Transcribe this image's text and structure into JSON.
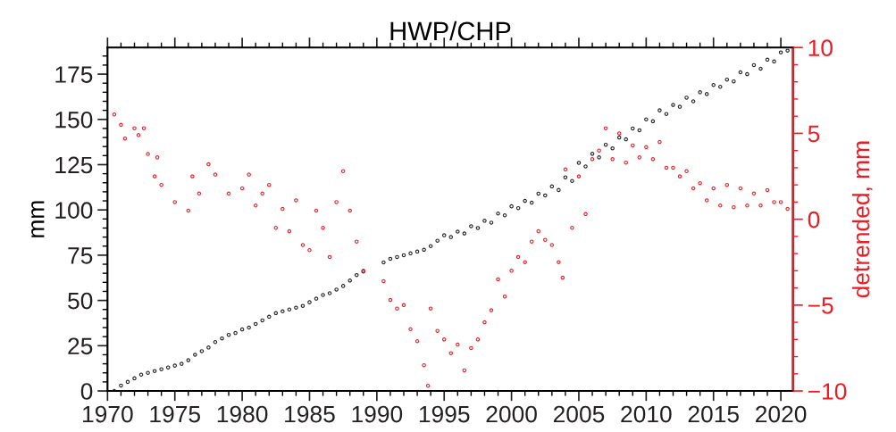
{
  "chart_data": {
    "type": "scatter",
    "title": "HWP/CHP",
    "ylabel": "mm",
    "y2label": "detrended, mm",
    "xlim": [
      1970,
      2020.9
    ],
    "xticks": [
      1970,
      1975,
      1980,
      1985,
      1990,
      1995,
      2000,
      2005,
      2010,
      2015,
      2020
    ],
    "ylim": [
      0,
      189.7
    ],
    "yticks": [
      0,
      25,
      50,
      75,
      100,
      125,
      150,
      175
    ],
    "y2lim": [
      -10,
      10
    ],
    "y2ticks": [
      {
        "value": -10,
        "label": "−10"
      },
      {
        "value": -5,
        "label": "−5"
      },
      0,
      5,
      10
    ],
    "marker": "circle",
    "grid": false,
    "series": [
      {
        "color": "#231f20",
        "x": [
          1970.5,
          1971,
          1971.5,
          1972,
          1972.5,
          1973,
          1973.5,
          1974,
          1974.5,
          1975,
          1975.5,
          1976,
          1976.5,
          1977,
          1977.5,
          1978,
          1978.5,
          1979,
          1979.5,
          1980,
          1980.5,
          1981,
          1981.5,
          1982,
          1982.5,
          1983,
          1983.5,
          1984,
          1984.5,
          1985,
          1985.5,
          1986,
          1986.5,
          1987,
          1987.5,
          1988,
          1988.5,
          1989,
          1990.5,
          1991,
          1991.5,
          1992,
          1992.5,
          1993,
          1993.5,
          1994,
          1994.5,
          1995,
          1995.5,
          1996,
          1996.5,
          1997,
          1997.5,
          1998,
          1998.5,
          1999,
          1999.5,
          2000,
          2000.5,
          2001,
          2001.5,
          2002,
          2002.5,
          2003,
          2003.5,
          2004,
          2004.5,
          2005,
          2005.5,
          2006,
          2006.5,
          2007,
          2007.5,
          2008,
          2008.5,
          2009,
          2009.5,
          2010,
          2010.5,
          2011,
          2011.5,
          2012,
          2012.5,
          2013,
          2013.5,
          2014,
          2014.5,
          2015,
          2015.5,
          2016,
          2016.5,
          2017,
          2017.5,
          2018,
          2018.5,
          2019,
          2019.5,
          2020,
          2020.5
        ],
        "values": [
          0,
          3,
          5,
          7,
          9,
          10,
          11,
          12,
          13,
          14,
          15,
          17,
          20,
          22,
          24,
          27,
          29,
          31,
          32,
          34,
          35,
          37,
          39,
          41,
          43,
          44,
          45,
          46,
          47,
          49,
          51,
          53,
          54,
          56,
          58,
          61,
          64,
          66,
          71,
          73,
          74,
          75,
          76,
          77,
          78,
          80,
          83,
          86,
          85,
          88,
          87,
          91,
          90,
          94,
          93,
          98,
          97,
          102,
          101,
          105,
          104,
          109,
          108,
          113,
          111,
          118,
          116,
          126,
          124,
          131,
          129,
          136,
          134,
          140,
          139,
          145,
          144,
          150,
          149,
          155,
          153,
          158,
          157,
          162,
          160,
          165,
          164,
          169,
          168,
          172,
          171,
          176,
          175,
          180,
          178,
          183,
          182,
          187,
          188
        ]
      },
      {
        "color": "#ed1c24",
        "axis": "y2",
        "x": [
          1970.5,
          1971,
          1971.3,
          1972,
          1972.3,
          1972.7,
          1973,
          1973.5,
          1973.7,
          1974,
          1975,
          1976,
          1976.3,
          1976.8,
          1977.5,
          1978,
          1979,
          1980,
          1980.5,
          1981,
          1981.5,
          1982,
          1982.5,
          1983,
          1983.5,
          1984,
          1984.5,
          1985,
          1985.5,
          1986,
          1986.5,
          1987,
          1987.5,
          1988,
          1988.5,
          1989,
          1990.5,
          1991,
          1991.5,
          1992,
          1992.5,
          1993,
          1993.5,
          1993.8,
          1994,
          1994.5,
          1995,
          1995.5,
          1996,
          1996.5,
          1997,
          1997.5,
          1998,
          1998.5,
          1999,
          1999.5,
          2000,
          2000.5,
          2001,
          2001.5,
          2002,
          2002.5,
          2003,
          2003.5,
          2003.8,
          2004,
          2004.5,
          2005,
          2005.5,
          2006,
          2006.5,
          2007,
          2007.5,
          2008,
          2008.5,
          2009,
          2009.5,
          2010,
          2010.5,
          2011,
          2011.5,
          2012,
          2012.5,
          2013,
          2013.5,
          2014,
          2014.5,
          2015,
          2015.5,
          2016,
          2016.5,
          2017,
          2017.5,
          2018,
          2018.5,
          2019,
          2019.5,
          2020,
          2020.5
        ],
        "values": [
          6.1,
          5.5,
          4.7,
          5.3,
          4.9,
          5.3,
          3.8,
          2.5,
          3.6,
          2.0,
          1.0,
          0.5,
          2.5,
          1.5,
          3.2,
          2.6,
          1.5,
          1.8,
          2.6,
          0.8,
          1.5,
          2.0,
          -0.5,
          0.6,
          -0.7,
          1.1,
          -1.5,
          -1.8,
          0.5,
          -0.5,
          -2.2,
          1.0,
          2.8,
          0.5,
          -1.3,
          -3.0,
          -3.6,
          -4.7,
          -5.2,
          -5.0,
          -6.4,
          -7.1,
          -8.5,
          -9.7,
          -5.2,
          -6.5,
          -7.0,
          -7.8,
          -7.3,
          -8.8,
          -7.5,
          -7.0,
          -6.0,
          -5.3,
          -3.5,
          -4.5,
          -3.0,
          -2.2,
          -2.5,
          -1.3,
          -0.7,
          -1.2,
          -1.5,
          -2.5,
          -3.4,
          2.9,
          -0.5,
          2.5,
          0.3,
          3.5,
          4.0,
          5.3,
          3.5,
          5.0,
          3.3,
          4.3,
          3.6,
          4.2,
          3.5,
          4.5,
          3.0,
          3.0,
          2.5,
          2.8,
          1.8,
          2.1,
          1.1,
          1.8,
          0.8,
          2.0,
          0.7,
          1.8,
          0.8,
          1.5,
          0.8,
          1.7,
          1.0,
          1.0,
          0.6
        ]
      }
    ]
  }
}
